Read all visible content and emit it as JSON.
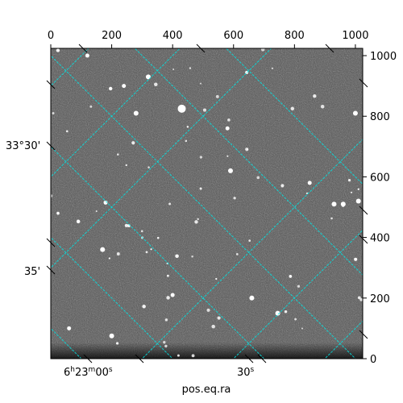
{
  "chart_data": {
    "type": "heatmap",
    "title": "",
    "xlabel": "pos.eq.ra",
    "ylabel": "",
    "pixel_axes": {
      "xlim": [
        0,
        1024
      ],
      "ylim": [
        0,
        1024
      ],
      "top_ticks": [
        0,
        200,
        400,
        600,
        800,
        1000
      ],
      "right_ticks": [
        0,
        200,
        400,
        600,
        800,
        1000
      ]
    },
    "world_tick_labels": {
      "ra": [
        "6h23m00s",
        "30s"
      ],
      "dec": [
        "33°30'",
        "35'"
      ]
    },
    "image_description_values": {
      "background_gray": "#555555",
      "star_count_visible": 80
    },
    "grid": true,
    "grid_color": "#00e5e5"
  }
}
